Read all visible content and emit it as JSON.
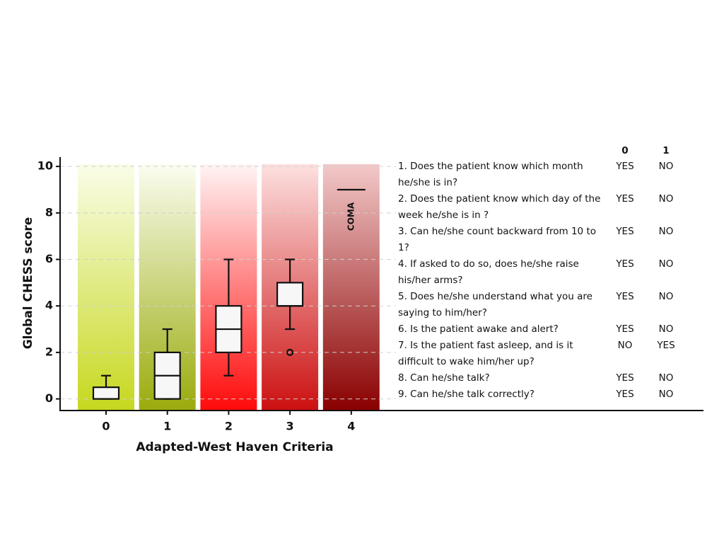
{
  "chart_data": {
    "type": "box",
    "x_label": "Adapted-West Haven Criteria",
    "y_label": "Global CHESS score",
    "categories": [
      "0",
      "1",
      "2",
      "3",
      "4"
    ],
    "boxes": [
      {
        "min": 0,
        "q1": 0,
        "median": 0,
        "q3": 0.5,
        "max": 1
      },
      {
        "min": 0,
        "q1": 0,
        "median": 1,
        "q3": 2,
        "max": 3
      },
      {
        "min": 1,
        "q1": 2,
        "median": 3,
        "q3": 4,
        "max": 6
      },
      {
        "min": 3,
        "q1": 4,
        "median": 4,
        "q3": 5,
        "max": 6
      },
      null
    ],
    "outliers": [
      [],
      [],
      [],
      [
        2
      ],
      []
    ],
    "annotation": {
      "text": "COMA",
      "category": 4,
      "value": 9
    },
    "band_colors": [
      [
        "#fafde8",
        "#c6d81e"
      ],
      [
        "#fbfdf0",
        "#9aab0c"
      ],
      [
        "#fff4f4",
        "#ff0a0a"
      ],
      [
        "#fde0e0",
        "#cc1010"
      ],
      [
        "#f3c9c9",
        "#8a0000"
      ]
    ],
    "ylim": [
      -0.5,
      10.4
    ],
    "yticks": [
      0,
      2,
      4,
      6,
      8,
      10
    ],
    "grid": true
  },
  "table": {
    "header": [
      "0",
      "1"
    ],
    "rows": [
      [
        "1. Does the patient know which month he/she is in?",
        "YES",
        "NO"
      ],
      [
        "2. Does the patient know which day of the week he/she is in ?",
        "YES",
        "NO"
      ],
      [
        "3. Can he/she count backward from 10 to 1?",
        "YES",
        "NO"
      ],
      [
        "4. If asked to do so, does he/she raise his/her arms?",
        "YES",
        "NO"
      ],
      [
        "5. Does he/she understand what you are saying to him/her?",
        "YES",
        "NO"
      ],
      [
        "6. Is the patient awake and alert?",
        "YES",
        "NO"
      ],
      [
        "7. Is the patient fast asleep, and is it difficult to wake him/her up?",
        "NO",
        "YES"
      ],
      [
        "8. Can he/she talk?",
        "YES",
        "NO"
      ],
      [
        "9. Can he/she talk correctly?",
        "YES",
        "NO"
      ]
    ]
  }
}
